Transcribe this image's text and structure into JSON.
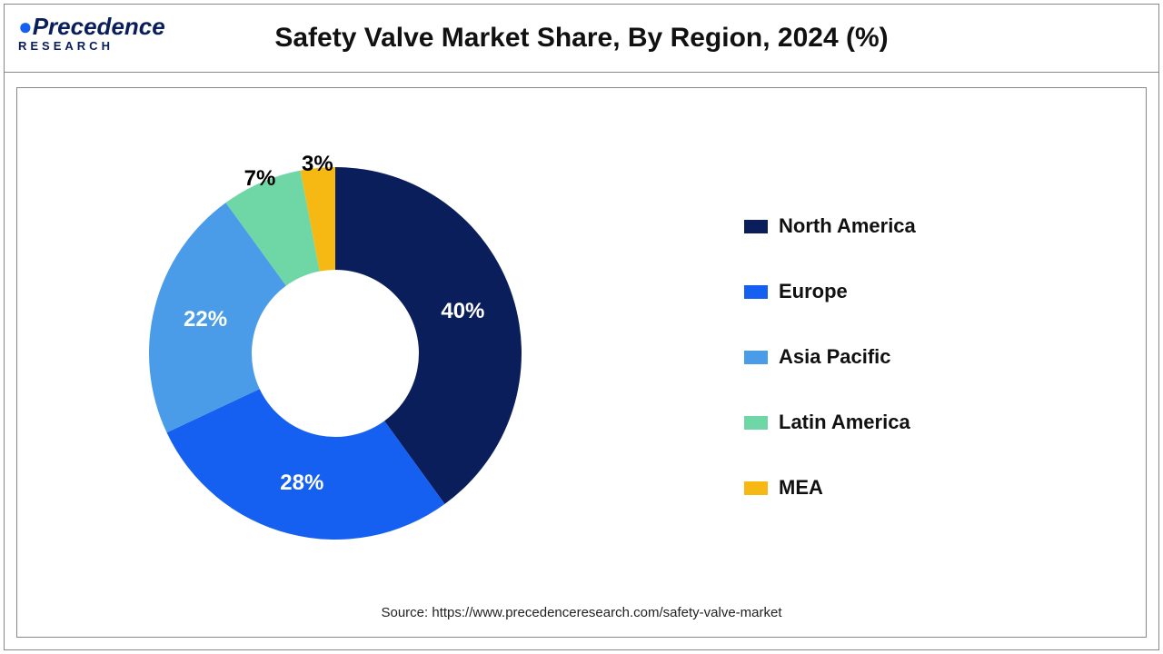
{
  "logo": {
    "main": "Precedence",
    "sub": "RESEARCH"
  },
  "title": "Safety Valve Market Share, By Region, 2024 (%)",
  "source": "Source: https://www.precedenceresearch.com/safety-valve-market",
  "chart": {
    "type": "donut",
    "background_color": "#ffffff",
    "inner_radius_ratio": 0.44,
    "start_angle_deg": 0,
    "slices": [
      {
        "label": "North America",
        "value": 40,
        "display": "40%",
        "color": "#0a1e5c"
      },
      {
        "label": "Europe",
        "value": 28,
        "display": "28%",
        "color": "#1560f0"
      },
      {
        "label": "Asia Pacific",
        "value": 22,
        "display": "22%",
        "color": "#4a9be8"
      },
      {
        "label": "Latin America",
        "value": 7,
        "display": "7%",
        "color": "#6fd6a6"
      },
      {
        "label": "MEA",
        "value": 3,
        "display": "3%",
        "color": "#f6b913"
      }
    ],
    "label_fontsize": 24,
    "label_fontweight": "bold",
    "label_color_light": "#ffffff",
    "label_color_dark": "#000000",
    "legend": {
      "fontsize": 22,
      "fontweight": "bold",
      "swatch_w": 26,
      "swatch_h": 15
    }
  }
}
